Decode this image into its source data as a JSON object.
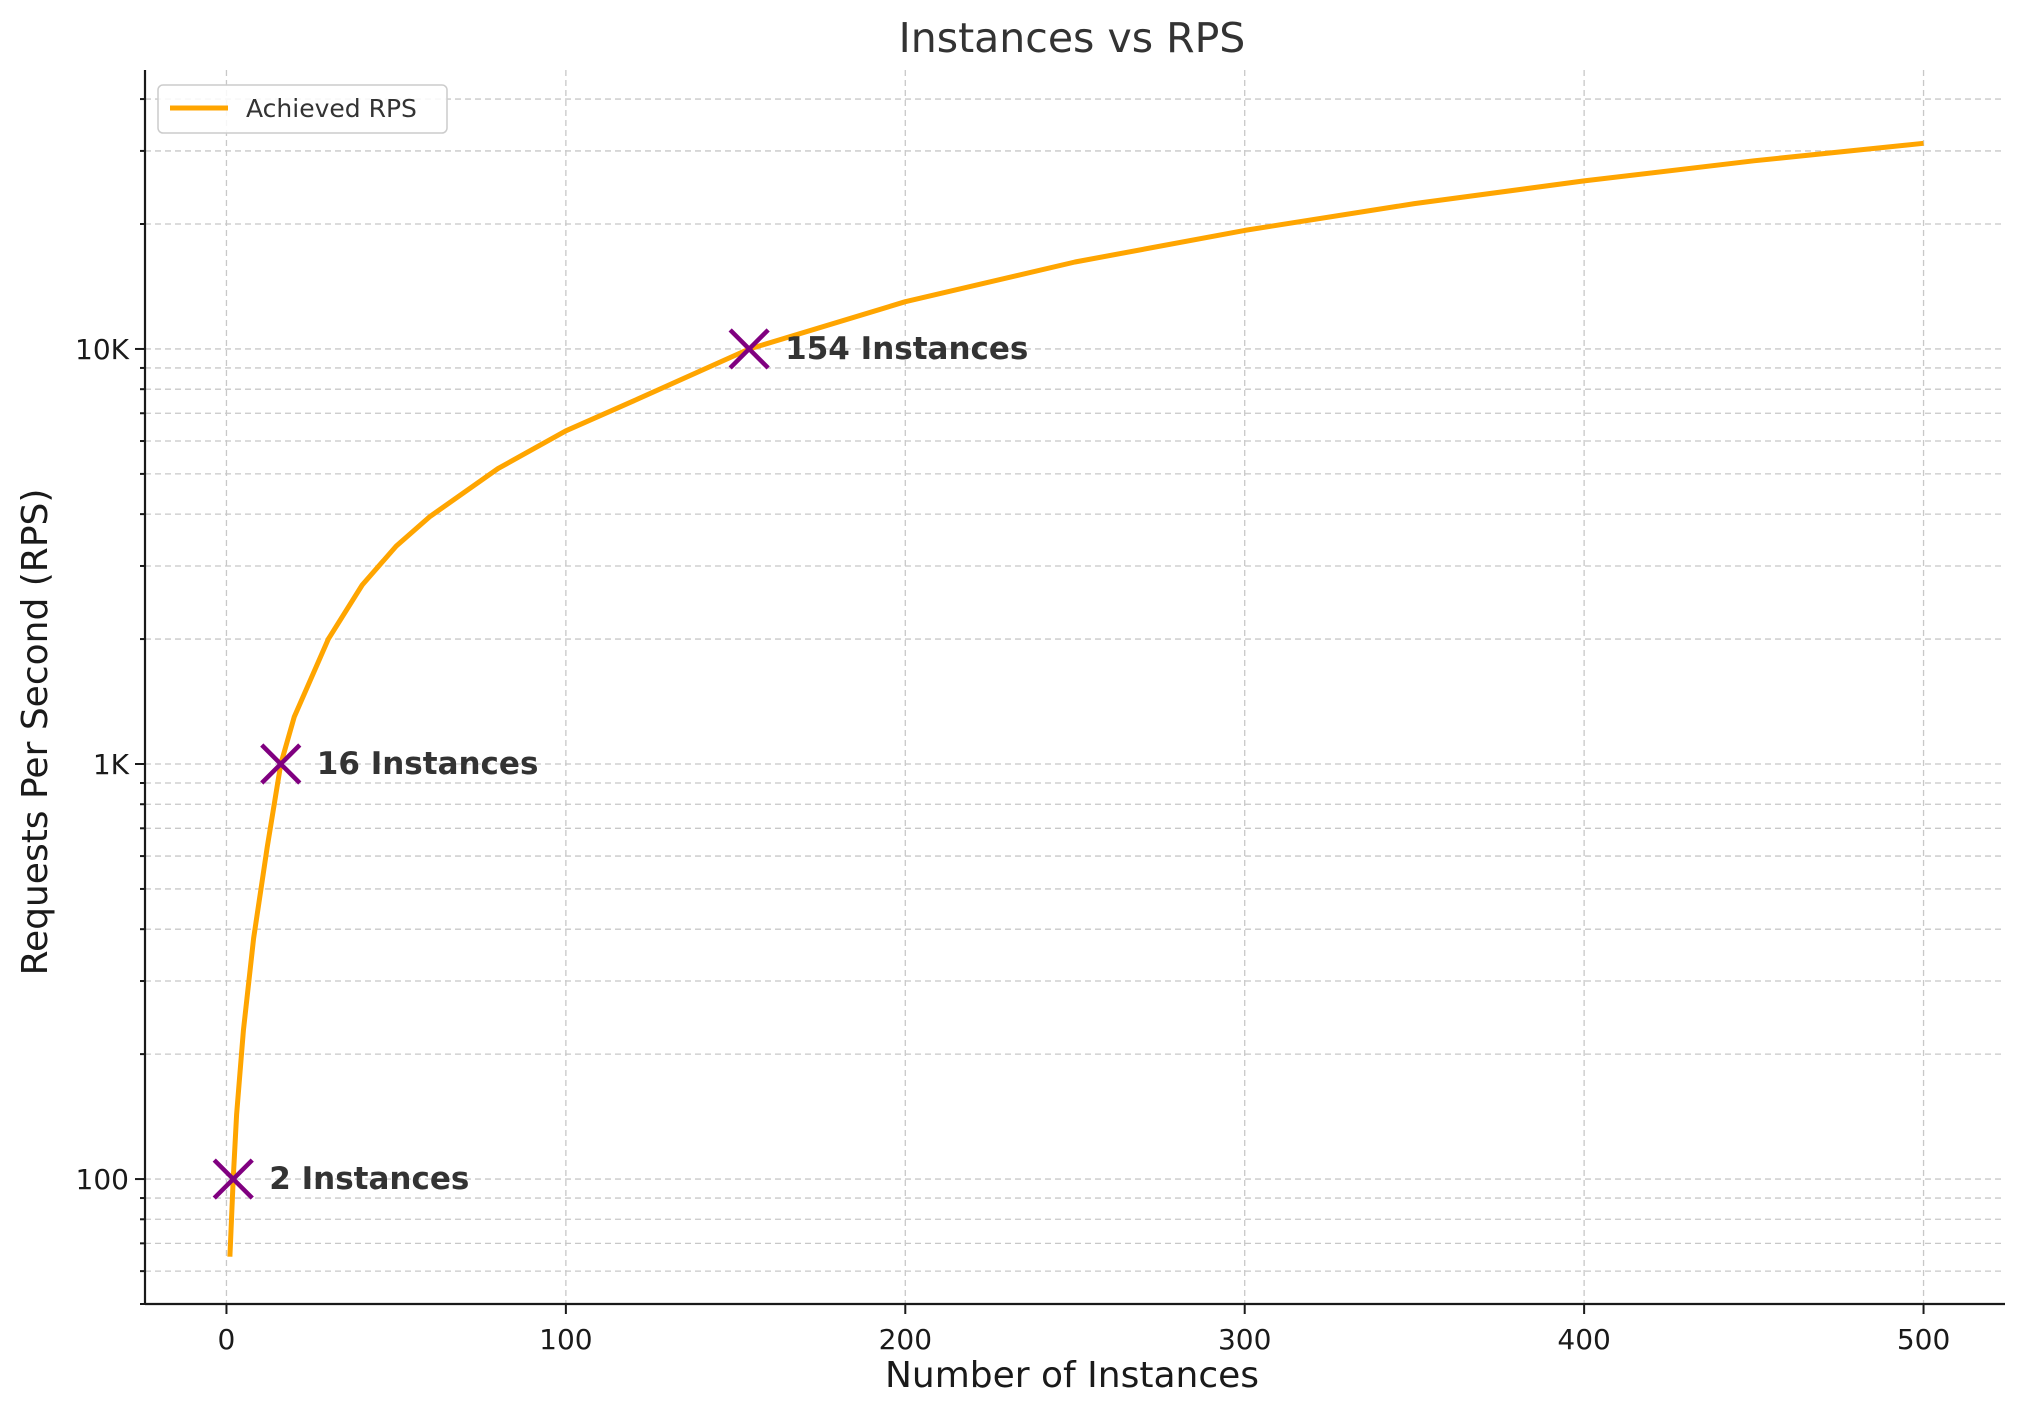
{
  "chart_data": {
    "type": "line",
    "title": "Instances vs RPS",
    "xlabel": "Number of Instances",
    "ylabel": "Requests Per Second (RPS)",
    "xlim": [
      -24,
      524
    ],
    "ylim": [
      50,
      47000
    ],
    "yscale": "log",
    "x_ticks": [
      0,
      100,
      200,
      300,
      400,
      500
    ],
    "x_tick_labels": [
      "0",
      "100",
      "200",
      "300",
      "400",
      "500"
    ],
    "y_ticks": [
      100,
      1000,
      10000
    ],
    "y_tick_labels": [
      "100",
      "1K",
      "10K"
    ],
    "grid": true,
    "legend_position": "top-left",
    "series": [
      {
        "name": "Achieved RPS",
        "color": "#FFA500",
        "x": [
          1,
          2,
          3,
          5,
          8,
          12,
          16,
          20,
          30,
          40,
          50,
          60,
          80,
          100,
          120,
          154,
          200,
          250,
          300,
          350,
          400,
          450,
          500
        ],
        "y": [
          65,
          100,
          143,
          228,
          380,
          630,
          1000,
          1300,
          2000,
          2700,
          3350,
          3950,
          5150,
          6350,
          7500,
          10000,
          13000,
          16200,
          19300,
          22400,
          25400,
          28400,
          31300
        ]
      }
    ],
    "annotations": [
      {
        "x": 2,
        "y": 100,
        "text": "2 Instances",
        "marker": "x-icon",
        "color": "#800080"
      },
      {
        "x": 16,
        "y": 1000,
        "text": "16 Instances",
        "marker": "x-icon",
        "color": "#800080"
      },
      {
        "x": 154,
        "y": 10000,
        "text": "154 Instances",
        "marker": "x-icon",
        "color": "#800080"
      }
    ]
  }
}
